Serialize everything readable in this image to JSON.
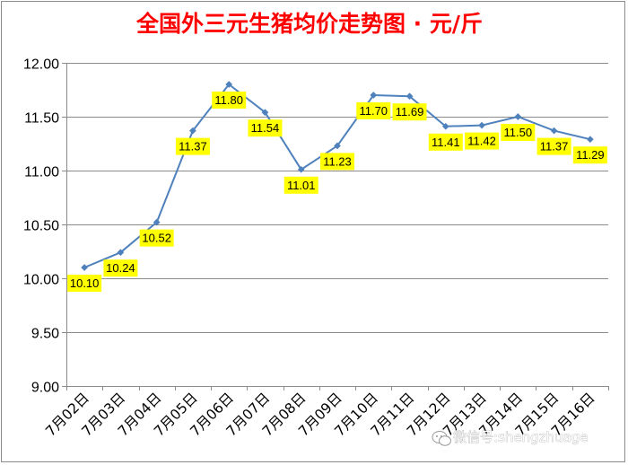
{
  "chart_data": {
    "type": "line",
    "title": "全国外三元生猪均价走势图 · 元/斤",
    "categories": [
      "7月02日",
      "7月03日",
      "7月04日",
      "7月05日",
      "7月06日",
      "7月07日",
      "7月08日",
      "7月09日",
      "7月10日",
      "7月11日",
      "7月12日",
      "7月13日",
      "7月14日",
      "7月15日",
      "7月16日"
    ],
    "values": [
      10.1,
      10.24,
      10.52,
      11.37,
      11.8,
      11.54,
      11.01,
      11.23,
      11.7,
      11.69,
      11.41,
      11.42,
      11.5,
      11.37,
      11.29
    ],
    "data_labels": [
      "10.10",
      "10.24",
      "10.52",
      "11.37",
      "11.80",
      "11.54",
      "11.01",
      "11.23",
      "11.70",
      "11.69",
      "11.41",
      "11.42",
      "11.50",
      "11.37",
      "11.29"
    ],
    "yticks": [
      "9.00",
      "9.50",
      "10.00",
      "10.50",
      "11.00",
      "11.50",
      "12.00"
    ],
    "ylim": [
      9.0,
      12.0
    ],
    "xlabel": "",
    "ylabel": "",
    "grid": "horizontal",
    "legend": "none",
    "colors": {
      "line": "#4f81bd",
      "label_fill": "#ffff00",
      "title": "#ff0000",
      "grid": "#8c8c8c"
    }
  },
  "watermark": {
    "icon": "wechat-icon",
    "text": "微信号:shengzhuage"
  }
}
